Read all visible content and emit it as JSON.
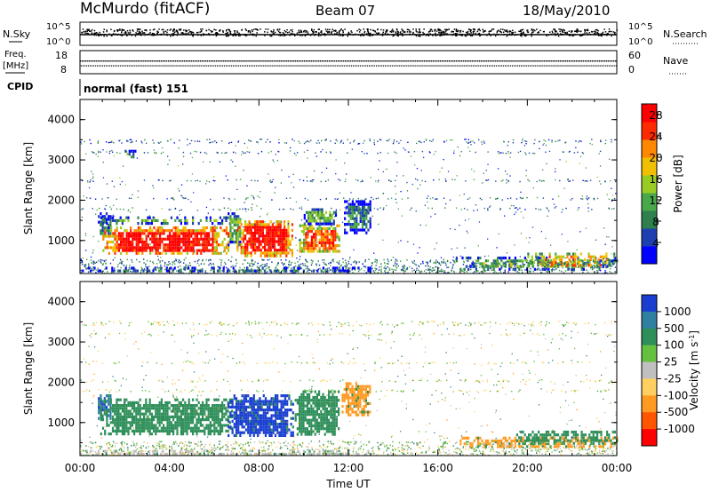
{
  "header": {
    "station": "McMurdo (fitACF)",
    "beam": "Beam 07",
    "date": "18/May/2010"
  },
  "top_panels": {
    "nsky_label": "N.Sky",
    "nsearch_label": "N.Search",
    "nsky_ticks": [
      "10^5",
      "10^0"
    ],
    "nsearch_ticks": [
      "10^5",
      "10^0"
    ],
    "freq_label": "Freq.",
    "freq_unit": "[MHz]",
    "freq_ticks": [
      "18",
      "8"
    ],
    "nave_label": "Nave",
    "nave_ticks": [
      "60",
      "0"
    ],
    "cpid_label": "CPID",
    "cpid_value": "normal (fast) 151"
  },
  "chart_data": [
    {
      "type": "heatmap",
      "name": "power",
      "ylabel": "Slant Range [km]",
      "xlabel": "",
      "xlim": [
        0,
        24
      ],
      "ylim": [
        180,
        4500
      ],
      "yticks": [
        "1000",
        "2000",
        "3000",
        "4000"
      ],
      "colorbar": {
        "label": "Power [dB]",
        "ticks": [
          "4",
          "8",
          "12",
          "16",
          "20",
          "24",
          "28"
        ],
        "range": [
          0,
          30
        ],
        "colors": [
          "#0000ff",
          "#1e3fb0",
          "#2f7f4f",
          "#49a84a",
          "#99cc22",
          "#f0c000",
          "#ff8800",
          "#ff2a00",
          "#ff0000"
        ]
      },
      "regions": [
        {
          "t0": 0.8,
          "t1": 1.4,
          "r0": 1100,
          "r1": 1700,
          "level": 8
        },
        {
          "t0": 0.9,
          "t1": 6.8,
          "r0": 1450,
          "r1": 1600,
          "level": 12
        },
        {
          "t0": 1.0,
          "t1": 6.6,
          "r0": 700,
          "r1": 1350,
          "level": 28
        },
        {
          "t0": 6.6,
          "t1": 7.2,
          "r0": 900,
          "r1": 1700,
          "level": 12
        },
        {
          "t0": 7.0,
          "t1": 9.5,
          "r0": 650,
          "r1": 1500,
          "level": 28
        },
        {
          "t0": 9.8,
          "t1": 11.6,
          "r0": 700,
          "r1": 1400,
          "level": 24
        },
        {
          "t0": 10.0,
          "t1": 11.4,
          "r0": 1400,
          "r1": 1800,
          "level": 12
        },
        {
          "t0": 11.8,
          "t1": 13.0,
          "r0": 1200,
          "r1": 2000,
          "level": 8
        },
        {
          "t0": 2.0,
          "t1": 2.5,
          "r0": 3050,
          "r1": 3250,
          "level": 10
        },
        {
          "t0": 0.0,
          "t1": 13.0,
          "r0": 220,
          "r1": 350,
          "level": 6
        },
        {
          "t0": 16.8,
          "t1": 24.0,
          "r0": 300,
          "r1": 600,
          "level": 12
        },
        {
          "t0": 20.0,
          "t1": 24.0,
          "r0": 350,
          "r1": 700,
          "level": 20
        }
      ]
    },
    {
      "type": "heatmap",
      "name": "velocity",
      "ylabel": "Slant Range [km]",
      "xlabel": "Time UT",
      "xlim": [
        0,
        24
      ],
      "ylim": [
        180,
        4500
      ],
      "yticks": [
        "1000",
        "2000",
        "3000",
        "4000"
      ],
      "xticks": [
        "00:00",
        "04:00",
        "08:00",
        "12:00",
        "16:00",
        "20:00",
        "00:00"
      ],
      "colorbar": {
        "label": "Velocity [m s^-1]",
        "ticks": [
          "1000",
          "500",
          "100",
          "25",
          "-25",
          "-100",
          "-500",
          "-1000"
        ],
        "colors": [
          "#1a3fd0",
          "#2f7fa0",
          "#2f8f5a",
          "#66c040",
          "#c0c0c0",
          "#ffd060",
          "#ff9a20",
          "#ff5500",
          "#ff0000"
        ]
      },
      "regions": [
        {
          "t0": 0.8,
          "t1": 1.4,
          "r0": 1100,
          "r1": 1700,
          "level": 500
        },
        {
          "t0": 0.9,
          "t1": 6.8,
          "r0": 700,
          "r1": 1600,
          "level": 100
        },
        {
          "t0": 6.6,
          "t1": 9.5,
          "r0": 650,
          "r1": 1700,
          "level": 1000
        },
        {
          "t0": 9.6,
          "t1": 11.6,
          "r0": 700,
          "r1": 1800,
          "level": 100
        },
        {
          "t0": 11.7,
          "t1": 13.0,
          "r0": 1200,
          "r1": 2000,
          "level": -500
        },
        {
          "t0": 16.8,
          "t1": 24.0,
          "r0": 400,
          "r1": 650,
          "level": -500
        },
        {
          "t0": 19.5,
          "t1": 24.0,
          "r0": 450,
          "r1": 800,
          "level": 100
        },
        {
          "t0": 0.0,
          "t1": 13.0,
          "r0": 200,
          "r1": 320,
          "level": -25
        }
      ]
    }
  ]
}
